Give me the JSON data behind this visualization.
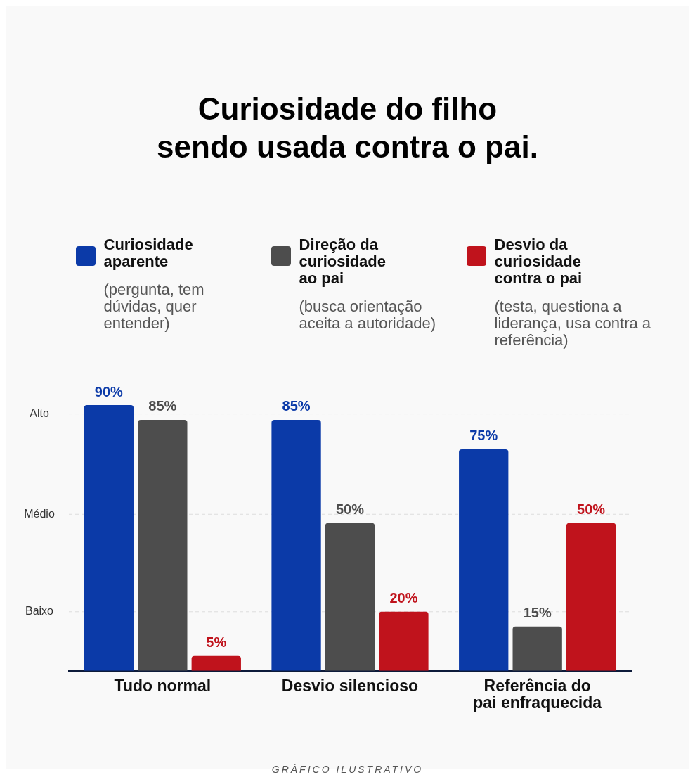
{
  "chart_data": {
    "type": "bar",
    "title": "Curiosidade do filho sendo usada contra o pai.",
    "categories": [
      "Tudo normal",
      "Desvio silencioso",
      "Referência do pai enfraquecida"
    ],
    "series": [
      {
        "name": "Curiosidade aparente",
        "color": "#0b3aa8",
        "values": [
          90,
          85,
          75
        ],
        "value_labels": [
          "90%",
          "85%",
          "75%"
        ]
      },
      {
        "name": "Direção da curiosidade ao pai",
        "color": "#4d4d4d",
        "values": [
          85,
          50,
          15
        ],
        "value_labels": [
          "85%",
          "50%",
          "15%"
        ]
      },
      {
        "name": "Desvio da curiosidade contra o pai",
        "color": "#c0131c",
        "values": [
          5,
          20,
          50
        ],
        "value_labels": [
          "5%",
          "20%",
          "50%"
        ]
      }
    ],
    "ref_lines": [
      {
        "axis": "y",
        "value": 20,
        "label": "Baixo",
        "color": "#dddddd",
        "line_style": "dashed"
      },
      {
        "axis": "y",
        "value": 53,
        "label": "Médio",
        "color": "#dddddd",
        "line_style": "dashed"
      },
      {
        "axis": "y",
        "value": 87,
        "label": "Alto",
        "color": "#dddddd",
        "line_style": "dashed"
      }
    ],
    "legend": "top",
    "annotations": [
      "(pergunta, tem dúvidas, quer entender)",
      "(busca orientação aceita a autoridade)",
      "(testa, questiona a liderança, usa contra a referência)",
      "GRÁFICO ILUSTRATIVO"
    ]
  }
}
